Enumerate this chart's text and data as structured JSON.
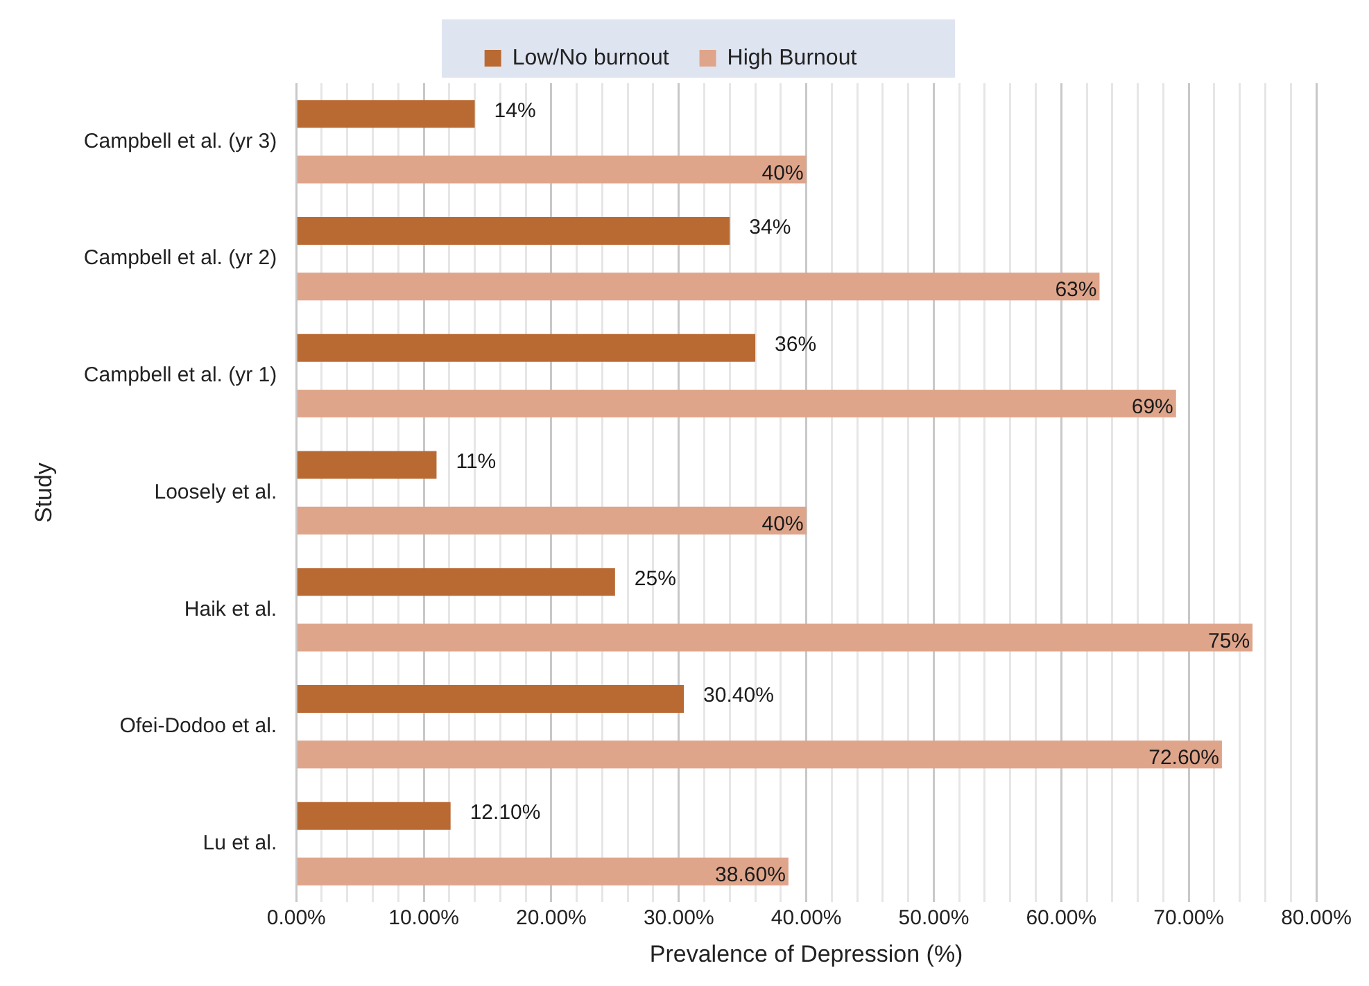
{
  "chart_data": {
    "type": "bar",
    "orientation": "horizontal",
    "xlabel": "Prevalence of Depression (%)",
    "ylabel": "Study",
    "categories": [
      "Campbell et al. (yr 3)",
      "Campbell et al. (yr 2)",
      "Campbell et al. (yr 1)",
      "Loosely et al.",
      "Haik et al.",
      "Ofei-Dodoo et al.",
      "Lu et al."
    ],
    "series": [
      {
        "name": "Low/No burnout",
        "color": "#b96a33",
        "values": [
          14,
          34,
          36,
          11,
          25,
          30.4,
          12.1
        ],
        "value_labels": [
          "14%",
          "34%",
          "36%",
          "11%",
          "25%",
          "30.40%",
          "12.10%"
        ]
      },
      {
        "name": "High Burnout",
        "color": "#dfa58b",
        "values": [
          40,
          63,
          69,
          40,
          75,
          72.6,
          38.6
        ],
        "value_labels": [
          "40%",
          "63%",
          "69%",
          "40%",
          "75%",
          "72.60%",
          "38.60%"
        ]
      }
    ],
    "xlim": [
      0,
      80
    ],
    "xticks": [
      {
        "value": 0,
        "label": "0.00%"
      },
      {
        "value": 2,
        "label": null
      },
      {
        "value": 4,
        "label": null
      },
      {
        "value": 6,
        "label": null
      },
      {
        "value": 8,
        "label": null
      },
      {
        "value": 10,
        "label": "10.00%"
      },
      {
        "value": 12,
        "label": null
      },
      {
        "value": 14,
        "label": null
      },
      {
        "value": 16,
        "label": null
      },
      {
        "value": 18,
        "label": null
      },
      {
        "value": 20,
        "label": "20.00%"
      },
      {
        "value": 22,
        "label": null
      },
      {
        "value": 24,
        "label": null
      },
      {
        "value": 26,
        "label": null
      },
      {
        "value": 28,
        "label": null
      },
      {
        "value": 30,
        "label": "30.00%"
      },
      {
        "value": 32,
        "label": null
      },
      {
        "value": 34,
        "label": null
      },
      {
        "value": 36,
        "label": null
      },
      {
        "value": 38,
        "label": null
      },
      {
        "value": 40,
        "label": "40.00%"
      },
      {
        "value": 42,
        "label": null
      },
      {
        "value": 44,
        "label": null
      },
      {
        "value": 46,
        "label": null
      },
      {
        "value": 48,
        "label": null
      },
      {
        "value": 50,
        "label": "50.00%"
      },
      {
        "value": 52,
        "label": null
      },
      {
        "value": 54,
        "label": null
      },
      {
        "value": 56,
        "label": null
      },
      {
        "value": 58,
        "label": null
      },
      {
        "value": 60,
        "label": "60.00%"
      },
      {
        "value": 62,
        "label": null
      },
      {
        "value": 64,
        "label": null
      },
      {
        "value": 66,
        "label": null
      },
      {
        "value": 68,
        "label": null
      },
      {
        "value": 70,
        "label": "70.00%"
      },
      {
        "value": 72,
        "label": null
      },
      {
        "value": 74,
        "label": null
      },
      {
        "value": 76,
        "label": null
      },
      {
        "value": 78,
        "label": null
      },
      {
        "value": 80,
        "label": "80.00%"
      }
    ],
    "grid": "x",
    "legend": "top"
  }
}
